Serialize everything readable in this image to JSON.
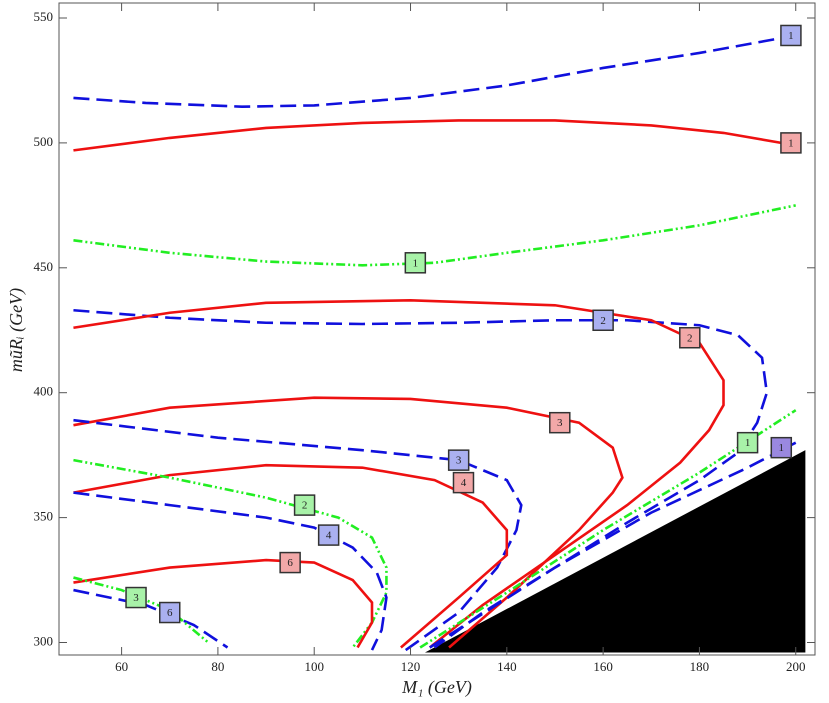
{
  "chart_data": {
    "type": "contour",
    "x_label": "M₁ (GeV)",
    "y_label": "mũRᵢ (GeV)",
    "xlim": [
      47,
      204
    ],
    "ylim": [
      295,
      556
    ],
    "xticks": [
      60,
      80,
      100,
      120,
      140,
      160,
      180,
      200
    ],
    "yticks": [
      300,
      350,
      400,
      450,
      500,
      550
    ],
    "region": {
      "color": "#000000",
      "x": [
        123,
        202,
        202
      ],
      "y": [
        296,
        377,
        296
      ]
    },
    "series": [
      {
        "color": "#1010dd",
        "style": "dashed",
        "x": [
          50,
          65,
          85,
          100,
          120,
          140,
          160,
          180,
          200
        ],
        "y": [
          518,
          516,
          514.5,
          515,
          518,
          523,
          530,
          536,
          543
        ]
      },
      {
        "color": "#ee1111",
        "style": "solid",
        "x": [
          50,
          70,
          90,
          110,
          130,
          150,
          170,
          185,
          200
        ],
        "y": [
          497,
          502,
          506,
          508,
          509,
          509,
          507,
          504,
          499
        ]
      },
      {
        "color": "#22ee22",
        "style": "dashdot",
        "x": [
          50,
          70,
          90,
          110,
          125,
          140,
          160,
          180,
          200
        ],
        "y": [
          461,
          456,
          452.5,
          451,
          452,
          456,
          461,
          467,
          475
        ]
      },
      {
        "color": "#1010dd",
        "style": "dashed",
        "x": [
          50,
          70,
          90,
          110,
          130,
          150,
          165,
          180,
          188,
          193,
          194,
          192,
          188,
          180,
          165,
          150,
          135,
          125
        ],
        "y": [
          433,
          430,
          428,
          427.5,
          428,
          429,
          429,
          427,
          423,
          414,
          400,
          388,
          376,
          365,
          348,
          330,
          312,
          298
        ]
      },
      {
        "color": "#ee1111",
        "style": "solid",
        "x": [
          50,
          70,
          90,
          120,
          150,
          170,
          180,
          185,
          185,
          182,
          176,
          165,
          150,
          135,
          124
        ],
        "y": [
          426,
          432,
          436,
          437,
          435,
          429,
          420,
          405,
          395,
          385,
          372,
          355,
          335,
          315,
          298
        ]
      },
      {
        "color": "#ee1111",
        "style": "solid",
        "x": [
          50,
          70,
          100,
          120,
          140,
          155,
          162,
          164,
          162,
          155,
          140,
          128
        ],
        "y": [
          387,
          394,
          398,
          397.5,
          394,
          388,
          378,
          366,
          360,
          345,
          318,
          298
        ]
      },
      {
        "color": "#1010dd",
        "style": "dashed",
        "x": [
          50,
          80,
          110,
          130,
          140,
          143,
          142,
          138,
          130,
          119
        ],
        "y": [
          389,
          382,
          377,
          373,
          365,
          355,
          345,
          330,
          312,
          297
        ]
      },
      {
        "color": "#ee1111",
        "style": "solid",
        "x": [
          50,
          70,
          90,
          110,
          125,
          135,
          140,
          140,
          130,
          118
        ],
        "y": [
          360,
          367,
          371,
          370,
          365,
          356,
          345,
          335,
          318,
          298
        ]
      },
      {
        "color": "#22ee22",
        "style": "dashdot",
        "x": [
          50,
          70,
          90,
          105,
          112,
          115,
          115,
          112,
          108
        ],
        "y": [
          373,
          366,
          358,
          350,
          342,
          330,
          320,
          308,
          298
        ]
      },
      {
        "color": "#1010dd",
        "style": "dashed",
        "x": [
          50,
          70,
          90,
          100,
          108,
          113,
          115,
          114,
          112
        ],
        "y": [
          360,
          355,
          350,
          346,
          338,
          328,
          318,
          305,
          297
        ]
      },
      {
        "color": "#ee1111",
        "style": "solid",
        "x": [
          50,
          70,
          90,
          100,
          108,
          112,
          112,
          109
        ],
        "y": [
          324,
          330,
          333,
          332,
          325,
          316,
          308,
          298
        ]
      },
      {
        "color": "#1010dd",
        "style": "dashed",
        "x": [
          50,
          65,
          75,
          82
        ],
        "y": [
          321,
          315,
          307,
          298
        ]
      },
      {
        "color": "#22ee22",
        "style": "dashdot",
        "x": [
          50,
          60,
          70,
          78
        ],
        "y": [
          326,
          321,
          313,
          300
        ]
      },
      {
        "color": "#22ee22",
        "style": "dashdot",
        "x": [
          122,
          140,
          160,
          180,
          200
        ],
        "y": [
          298,
          320,
          345,
          368,
          393
        ]
      },
      {
        "color": "#1010dd",
        "style": "dashed",
        "x": [
          124,
          150,
          170,
          190,
          200
        ],
        "y": [
          298,
          330,
          352,
          370,
          380
        ]
      }
    ],
    "annotations": [
      {
        "text": "1",
        "x": 199,
        "y": 543,
        "color": "#aab0f0"
      },
      {
        "text": "1",
        "x": 199,
        "y": 500,
        "color": "#f2a8a8"
      },
      {
        "text": "1",
        "x": 121,
        "y": 452,
        "color": "#a8f2a8"
      },
      {
        "text": "2",
        "x": 160,
        "y": 429,
        "color": "#aab0f0"
      },
      {
        "text": "2",
        "x": 178,
        "y": 422,
        "color": "#f2a8a8"
      },
      {
        "text": "3",
        "x": 151,
        "y": 388,
        "color": "#f2a8a8"
      },
      {
        "text": "3",
        "x": 130,
        "y": 373,
        "color": "#aab0f0"
      },
      {
        "text": "4",
        "x": 131,
        "y": 364,
        "color": "#f2a8a8"
      },
      {
        "text": "2",
        "x": 98,
        "y": 355,
        "color": "#a8f2a8"
      },
      {
        "text": "4",
        "x": 103,
        "y": 343,
        "color": "#aab0f0"
      },
      {
        "text": "6",
        "x": 95,
        "y": 332,
        "color": "#f2a8a8"
      },
      {
        "text": "3",
        "x": 63,
        "y": 318,
        "color": "#a8f2a8"
      },
      {
        "text": "6",
        "x": 70,
        "y": 312,
        "color": "#aab0f0"
      },
      {
        "text": "1",
        "x": 190,
        "y": 380,
        "color": "#a8f2a8"
      },
      {
        "text": "1",
        "x": 197,
        "y": 378,
        "color": "#9a88e0"
      }
    ]
  }
}
